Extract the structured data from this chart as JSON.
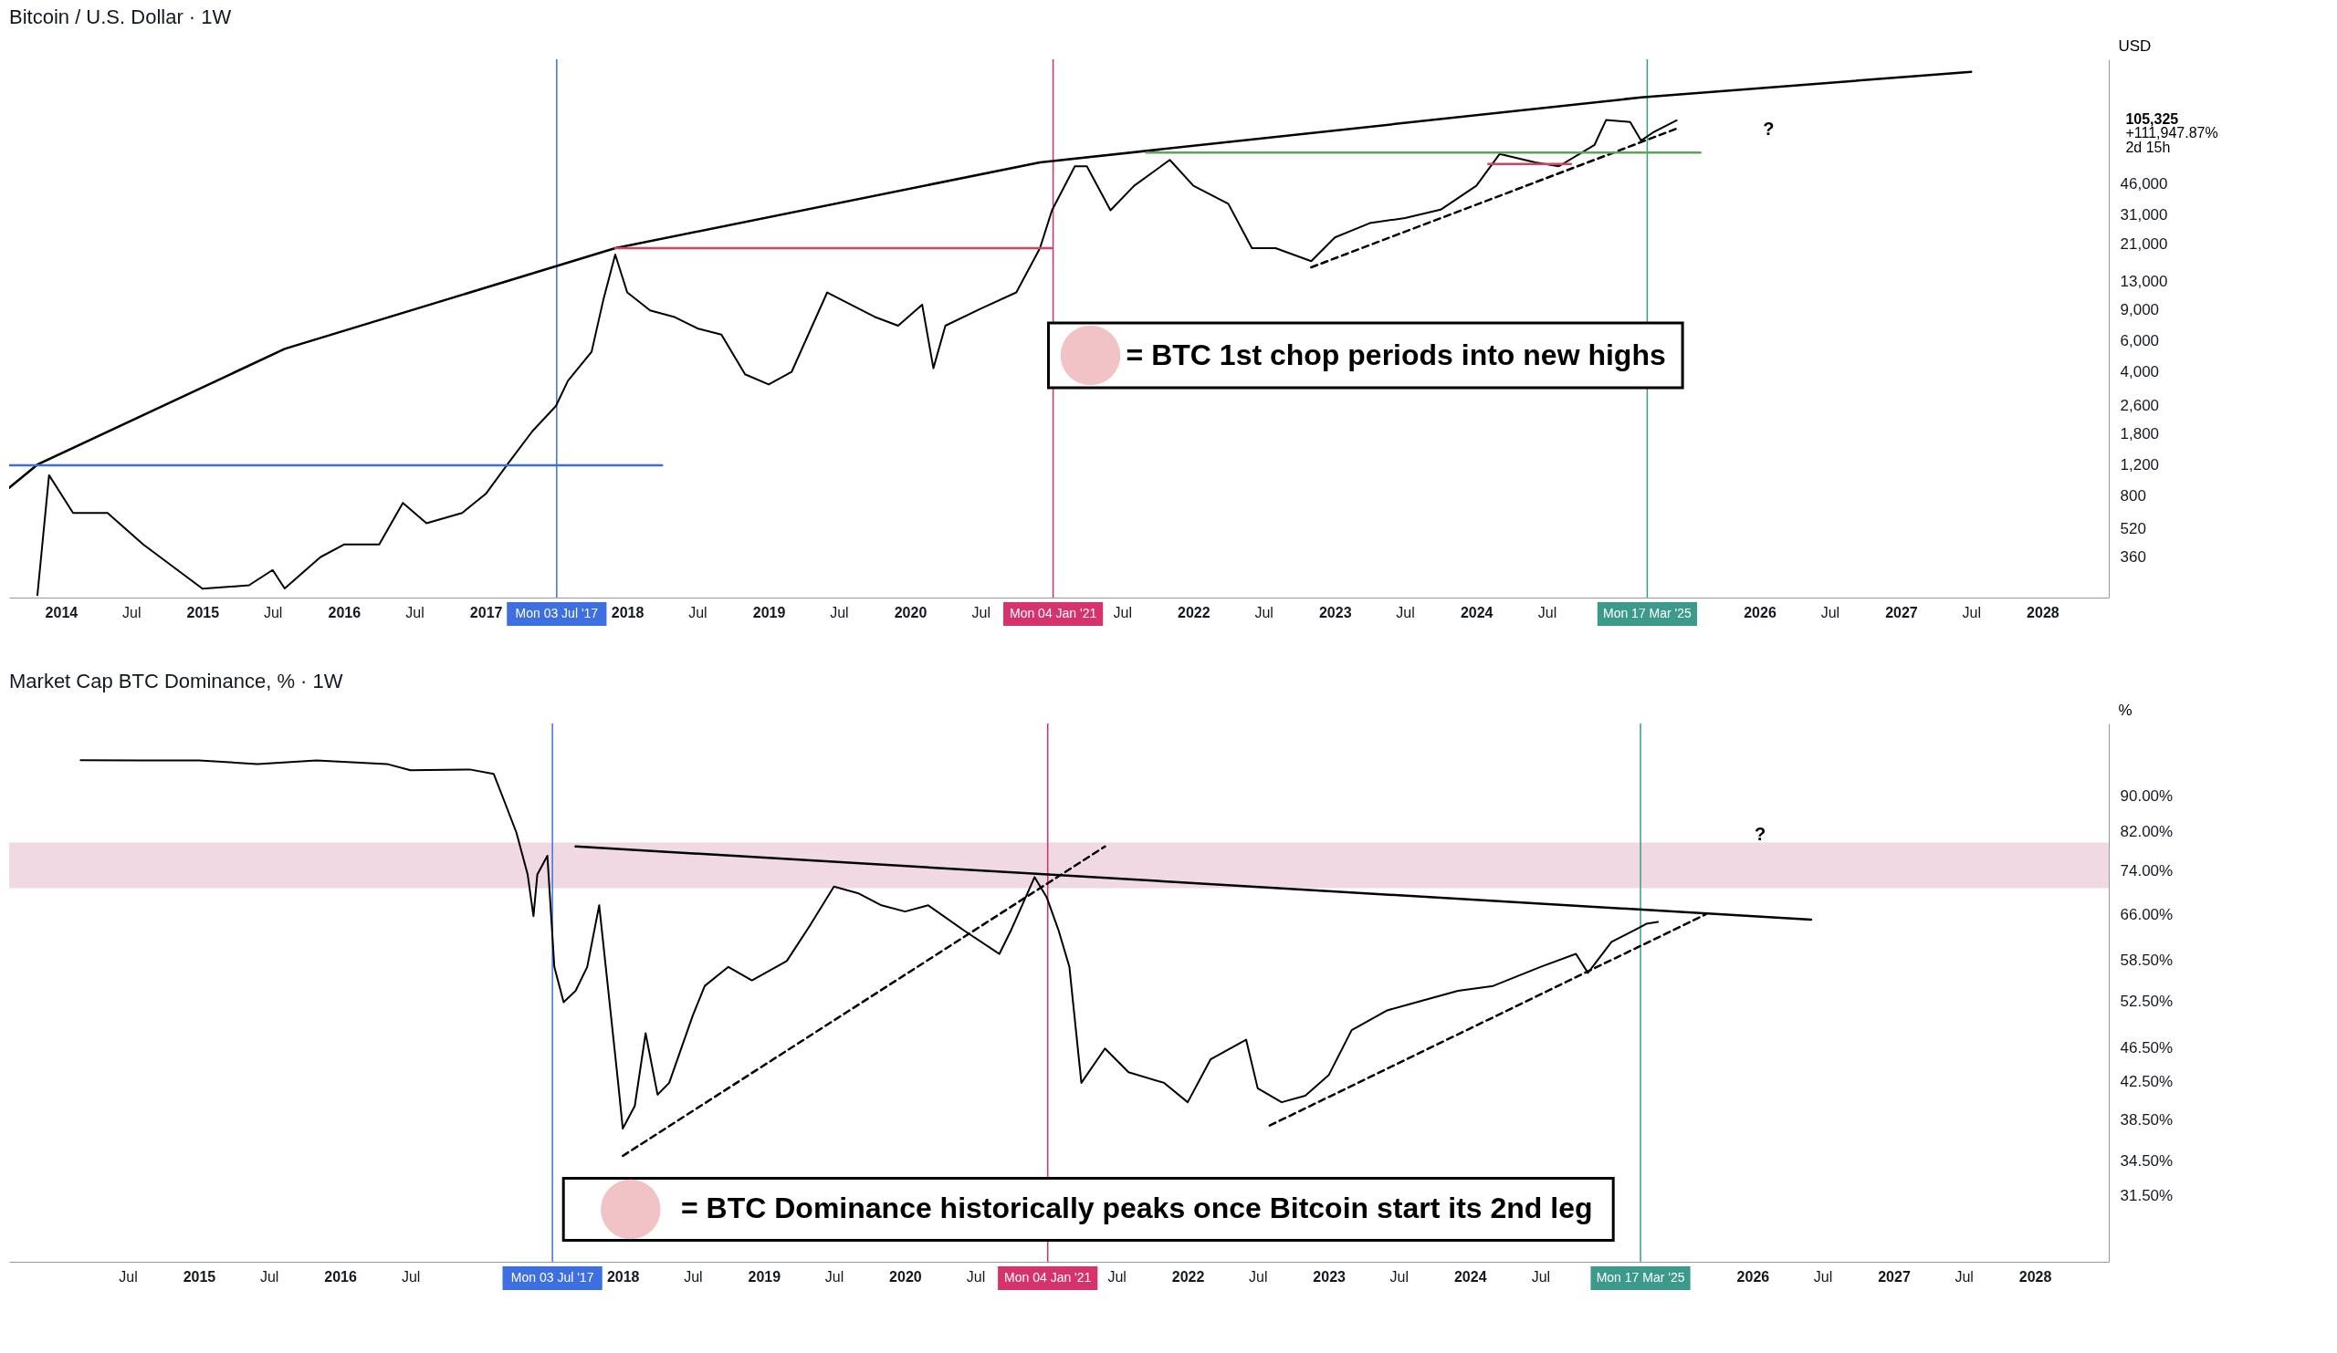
{
  "chart_data": [
    {
      "type": "line",
      "title": "Bitcoin / U.S. Dollar · 1W",
      "ylabel": "USD",
      "log": true,
      "xlim": [
        "2013-08-20",
        "2028-06-20"
      ],
      "ylim": [
        213,
        233000
      ],
      "xticks": [
        {
          "value": "2014",
          "label": "2014"
        },
        {
          "value": "2014-07",
          "label": "Jul"
        },
        {
          "value": "2015",
          "label": "2015"
        },
        {
          "value": "2015-07",
          "label": "Jul"
        },
        {
          "value": "2016",
          "label": "2016"
        },
        {
          "value": "2016-07",
          "label": "Jul"
        },
        {
          "value": "2017",
          "label": "2017"
        },
        {
          "value": "2018",
          "label": "2018"
        },
        {
          "value": "2018-07",
          "label": "Jul"
        },
        {
          "value": "2019",
          "label": "2019"
        },
        {
          "value": "2019-07",
          "label": "Jul"
        },
        {
          "value": "2020",
          "label": "2020"
        },
        {
          "value": "2020-07",
          "label": "Jul"
        },
        {
          "value": "2021-07",
          "label": "Jul"
        },
        {
          "value": "2022",
          "label": "2022"
        },
        {
          "value": "2022-07",
          "label": "Jul"
        },
        {
          "value": "2023",
          "label": "2023"
        },
        {
          "value": "2023-07",
          "label": "Jul"
        },
        {
          "value": "2024",
          "label": "2024"
        },
        {
          "value": "2024-07",
          "label": "Jul"
        },
        {
          "value": "2026",
          "label": "2026"
        },
        {
          "value": "2026-07",
          "label": "Jul"
        },
        {
          "value": "2027",
          "label": "2027"
        },
        {
          "value": "2027-07",
          "label": "Jul"
        },
        {
          "value": "2028",
          "label": "2028"
        }
      ],
      "yticks": [
        {
          "value": 360,
          "label": "360"
        },
        {
          "value": 520,
          "label": "520"
        },
        {
          "value": 800,
          "label": "800"
        },
        {
          "value": 1200,
          "label": "1,200"
        },
        {
          "value": 1800,
          "label": "1,800"
        },
        {
          "value": 2600,
          "label": "2,600"
        },
        {
          "value": 4000,
          "label": "4,000"
        },
        {
          "value": 6000,
          "label": "6,000"
        },
        {
          "value": 9000,
          "label": "9,000"
        },
        {
          "value": 13000,
          "label": "13,000"
        },
        {
          "value": 21000,
          "label": "21,000"
        },
        {
          "value": 31000,
          "label": "31,000"
        },
        {
          "value": 46000,
          "label": "46,000"
        }
      ],
      "series": [
        {
          "color": "#000000",
          "x": [
            "2013-11",
            "2013-12",
            "2014-01",
            "2014-02",
            "2014-05",
            "2014-08",
            "2015-01",
            "2015-05",
            "2015-07",
            "2015-08",
            "2015-11",
            "2016-01",
            "2016-04",
            "2016-06",
            "2016-08",
            "2016-11",
            "2017-01",
            "2017-03",
            "2017-05",
            "2017-07",
            "2017-08",
            "2017-10",
            "2017-11",
            "2017-12",
            "2018-01",
            "2018-03",
            "2018-05",
            "2018-07",
            "2018-09",
            "2018-11",
            "2019-01",
            "2019-03",
            "2019-06",
            "2019-08",
            "2019-10",
            "2019-12",
            "2020-02",
            "2020-03",
            "2020-04",
            "2020-07",
            "2020-10",
            "2020-12",
            "2021-01",
            "2021-03",
            "2021-04",
            "2021-06",
            "2021-08",
            "2021-11",
            "2022-01",
            "2022-04",
            "2022-06",
            "2022-08",
            "2022-11",
            "2023-01",
            "2023-04",
            "2023-07",
            "2023-10",
            "2024-01",
            "2024-03",
            "2024-06",
            "2024-08",
            "2024-11",
            "2024-12",
            "2025-02",
            "2025-03",
            "2025-04",
            "2025-06"
          ],
          "values": [
            220,
            1045,
            818,
            640,
            640,
            425,
            239,
            250,
            305,
            240,
            360,
            425,
            425,
            730,
            560,
            640,
            820,
            1230,
            1850,
            2570,
            3570,
            5200,
            10370,
            18400,
            11250,
            8900,
            8200,
            7050,
            6500,
            3880,
            3400,
            4000,
            11250,
            9600,
            8200,
            7300,
            9600,
            4200,
            7300,
            9100,
            11250,
            20000,
            32700,
            58000,
            58000,
            32700,
            45000,
            63000,
            45000,
            35600,
            20000,
            20000,
            16900,
            23000,
            27700,
            29600,
            33000,
            45000,
            68000,
            61000,
            58000,
            76600,
            106000,
            103000,
            81000,
            90000,
            105325
          ]
        },
        {
          "type": "line",
          "color": "#000000",
          "x": [
            "2013-08-20",
            "2013-11",
            "2015-08",
            "2017-12",
            "2020-12",
            "2025-03",
            "2027-07"
          ],
          "values": [
            887,
            1200,
            5400,
            20000,
            61000,
            142000,
            198000
          ]
        },
        {
          "type": "line",
          "color": "#000000",
          "line_style": "dashed",
          "x": [
            "2022-11",
            "2025-06"
          ],
          "values": [
            15600,
            94600
          ]
        },
        {
          "type": "line",
          "color": "#3c6fd8",
          "x": [
            "2013-08-20",
            "2018-04"
          ],
          "values": [
            1190,
            1190
          ]
        },
        {
          "type": "line",
          "color": "#d8405f",
          "x": [
            "2017-12",
            "2021-01"
          ],
          "values": [
            20000,
            20000
          ]
        },
        {
          "type": "line",
          "color": "#d8405f",
          "x": [
            "2024-02",
            "2024-09"
          ],
          "values": [
            59800,
            59800
          ]
        },
        {
          "type": "line",
          "color": "#5fa35a",
          "x": [
            "2021-09",
            "2025-08"
          ],
          "values": [
            69300,
            69300
          ]
        }
      ],
      "ref_lines": [
        {
          "axis": "x",
          "value": "2017-07-03",
          "label": "Mon 03 Jul '17",
          "color": "#3d6fe0"
        },
        {
          "axis": "x",
          "value": "2021-01-04",
          "label": "Mon 04 Jan '21",
          "color": "#d6336c"
        },
        {
          "axis": "x",
          "value": "2025-03-17",
          "label": "Mon 17 Mar '25",
          "color": "#3c9a8a"
        }
      ],
      "annotations": [
        "= BTC 1st chop periods into new highs",
        "?",
        "105,325",
        "+111,947.87%",
        "2d 15h"
      ]
    },
    {
      "type": "line",
      "title": "Market Cap BTC Dominance, % · 1W",
      "ylabel": "%",
      "log": true,
      "xlim": [
        "2013-08-28",
        "2028-07-10"
      ],
      "ylim": [
        26.5,
        109
      ],
      "xticks": [
        {
          "value": "2014-07",
          "label": "Jul"
        },
        {
          "value": "2015",
          "label": "2015"
        },
        {
          "value": "2015-07",
          "label": "Jul"
        },
        {
          "value": "2016",
          "label": "2016"
        },
        {
          "value": "2016-07",
          "label": "Jul"
        },
        {
          "value": "2018",
          "label": "2018"
        },
        {
          "value": "2018-07",
          "label": "Jul"
        },
        {
          "value": "2019",
          "label": "2019"
        },
        {
          "value": "2019-07",
          "label": "Jul"
        },
        {
          "value": "2020",
          "label": "2020"
        },
        {
          "value": "2020-07",
          "label": "Jul"
        },
        {
          "value": "2021-07",
          "label": "Jul"
        },
        {
          "value": "2022",
          "label": "2022"
        },
        {
          "value": "2022-07",
          "label": "Jul"
        },
        {
          "value": "2023",
          "label": "2023"
        },
        {
          "value": "2023-07",
          "label": "Jul"
        },
        {
          "value": "2024",
          "label": "2024"
        },
        {
          "value": "2024-07",
          "label": "Jul"
        },
        {
          "value": "2026",
          "label": "2026"
        },
        {
          "value": "2026-07",
          "label": "Jul"
        },
        {
          "value": "2027",
          "label": "2027"
        },
        {
          "value": "2027-07",
          "label": "Jul"
        },
        {
          "value": "2028",
          "label": "2028"
        }
      ],
      "yticks": [
        {
          "value": 31.5,
          "label": "31.50%"
        },
        {
          "value": 34.5,
          "label": "34.50%"
        },
        {
          "value": 38.5,
          "label": "38.50%"
        },
        {
          "value": 42.5,
          "label": "42.50%"
        },
        {
          "value": 46.5,
          "label": "46.50%"
        },
        {
          "value": 52.5,
          "label": "52.50%"
        },
        {
          "value": 58.5,
          "label": "58.50%"
        },
        {
          "value": 66,
          "label": "66.00%"
        },
        {
          "value": 74,
          "label": "74.00%"
        },
        {
          "value": 82,
          "label": "82.00%"
        },
        {
          "value": 90,
          "label": "90.00%"
        }
      ],
      "series": [
        {
          "color": "#000000",
          "x": [
            "2014-03",
            "2014-08",
            "2015-01",
            "2015-06",
            "2015-11",
            "2016-05",
            "2016-07",
            "2016-12",
            "2017-02",
            "2017-03",
            "2017-04",
            "2017-04-30",
            "2017-05-15",
            "2017-05-25",
            "2017-06-20",
            "2017-07-08",
            "2017-08",
            "2017-09",
            "2017-10",
            "2017-11",
            "2017-12-20",
            "2018-01",
            "2018-02",
            "2018-03",
            "2018-04",
            "2018-05",
            "2018-07",
            "2018-08",
            "2018-10",
            "2018-12",
            "2019-03",
            "2019-05",
            "2019-07",
            "2019-09",
            "2019-11",
            "2020-01",
            "2020-03",
            "2020-06",
            "2020-09",
            "2020-10",
            "2020-12",
            "2021-01",
            "2021-02",
            "2021-03",
            "2021-04",
            "2021-06",
            "2021-08",
            "2021-11",
            "2022-01",
            "2022-03",
            "2022-06",
            "2022-07",
            "2022-09",
            "2022-11",
            "2023-01",
            "2023-03",
            "2023-06",
            "2023-08",
            "2023-12",
            "2024-03",
            "2024-07",
            "2024-10",
            "2024-11",
            "2025-01",
            "2025-03",
            "2025-04",
            "2025-05"
          ],
          "values": [
            99,
            98.9,
            98.9,
            98,
            98.9,
            98,
            96.4,
            96.6,
            95.5,
            88.8,
            81.8,
            73.3,
            65.7,
            73.3,
            77,
            57.5,
            52.4,
            54,
            57.5,
            67.6,
            42.4,
            37.6,
            39.9,
            48.3,
            41.1,
            42.4,
            50.6,
            54.7,
            57.5,
            55.5,
            58.4,
            64.2,
            71,
            69.8,
            67.6,
            66.5,
            67.6,
            63.3,
            59.5,
            63.3,
            72.8,
            69.1,
            63.3,
            57.5,
            42.4,
            46.4,
            43.6,
            42.4,
            40.3,
            45.1,
            47.5,
            41.8,
            40.3,
            41,
            43.3,
            48.7,
            51.3,
            52.2,
            54,
            54.7,
            57.5,
            59.5,
            56.6,
            61.4,
            63.3,
            64.4,
            64.7
          ]
        },
        {
          "type": "line",
          "color": "#000000",
          "x": [
            "2017-09",
            "2026-06"
          ],
          "values": [
            78.9,
            65.1
          ]
        },
        {
          "type": "line",
          "color": "#000000",
          "line_style": "dashed",
          "x": [
            "2018-01",
            "2021-06"
          ],
          "values": [
            35,
            78.9
          ]
        },
        {
          "type": "line",
          "color": "#000000",
          "line_style": "dashed",
          "x": [
            "2022-08",
            "2025-09"
          ],
          "values": [
            37.9,
            66
          ]
        }
      ],
      "bands": [
        {
          "axis": "y",
          "from": 70.7,
          "to": 79.7,
          "color": "#ecd0dc"
        }
      ],
      "ref_lines": [
        {
          "axis": "x",
          "value": "2017-07-03",
          "label": "Mon 03 Jul '17",
          "color": "#3d6fe0"
        },
        {
          "axis": "x",
          "value": "2021-01-04",
          "label": "Mon 04 Jan '21",
          "color": "#d6336c"
        },
        {
          "axis": "x",
          "value": "2025-03-17",
          "label": "Mon 17 Mar '25",
          "color": "#3c9a8a"
        }
      ],
      "annotations": [
        "= BTC Dominance historically peaks once Bitcoin start its 2nd leg",
        "?"
      ]
    }
  ]
}
